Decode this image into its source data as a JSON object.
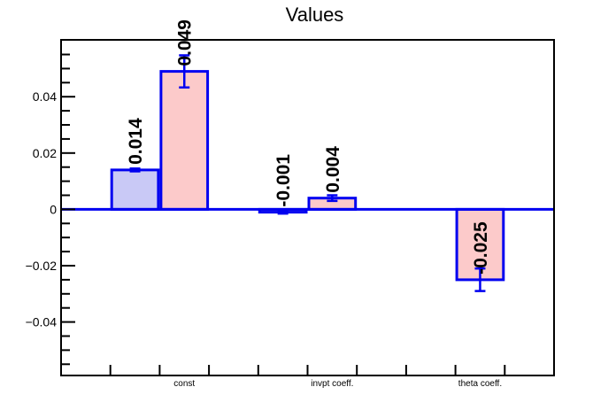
{
  "page": {
    "background": "#ffffff"
  },
  "chart_data": {
    "type": "bar",
    "title": "Values",
    "grid": false,
    "legend": "none",
    "x_axis": {
      "n_bins": 10,
      "tick_bins": [
        1,
        2,
        3,
        4,
        5,
        6,
        7,
        8,
        9
      ],
      "categories": [
        {
          "label": "const",
          "bin": 2
        },
        {
          "label": "invpt coeff.",
          "bin": 5
        },
        {
          "label": "theta coeff.",
          "bin": 8
        }
      ]
    },
    "y_axis": {
      "ylim": [
        -0.059,
        0.0602
      ],
      "major_ticks": [
        {
          "value": 0.04,
          "label": "0.04"
        },
        {
          "value": 0.02,
          "label": "0.02"
        },
        {
          "value": 0,
          "label": "0"
        },
        {
          "value": -0.02,
          "label": "−0.02"
        },
        {
          "value": -0.04,
          "label": "−0.04"
        }
      ],
      "minor_step": 0.005,
      "minor_range": [
        -0.055,
        0.055
      ]
    },
    "bars": [
      {
        "bin": 1,
        "value": 0.014,
        "error": 0.0005,
        "label": "0.014",
        "fill": "lavender",
        "category": "const"
      },
      {
        "bin": 2,
        "value": 0.049,
        "error": 0.0057,
        "label": "0.049",
        "fill": "pink",
        "category": "const"
      },
      {
        "bin": 4,
        "value": -0.001,
        "error": 0.0005,
        "label": "-0.001",
        "fill": "lavender",
        "category": "invpt coeff."
      },
      {
        "bin": 5,
        "value": 0.004,
        "error": 0.001,
        "label": "0.004",
        "fill": "pink",
        "category": "invpt coeff."
      },
      {
        "bin": 8,
        "value": -0.025,
        "error": 0.004,
        "label": "-0.025",
        "fill": "pink",
        "category": "theta coeff."
      }
    ],
    "colors": {
      "lavender": "#c9c9f6",
      "pink": "#fccaca",
      "line_blue": "#0000f0",
      "frame": "#000000",
      "text": "#000000"
    }
  }
}
